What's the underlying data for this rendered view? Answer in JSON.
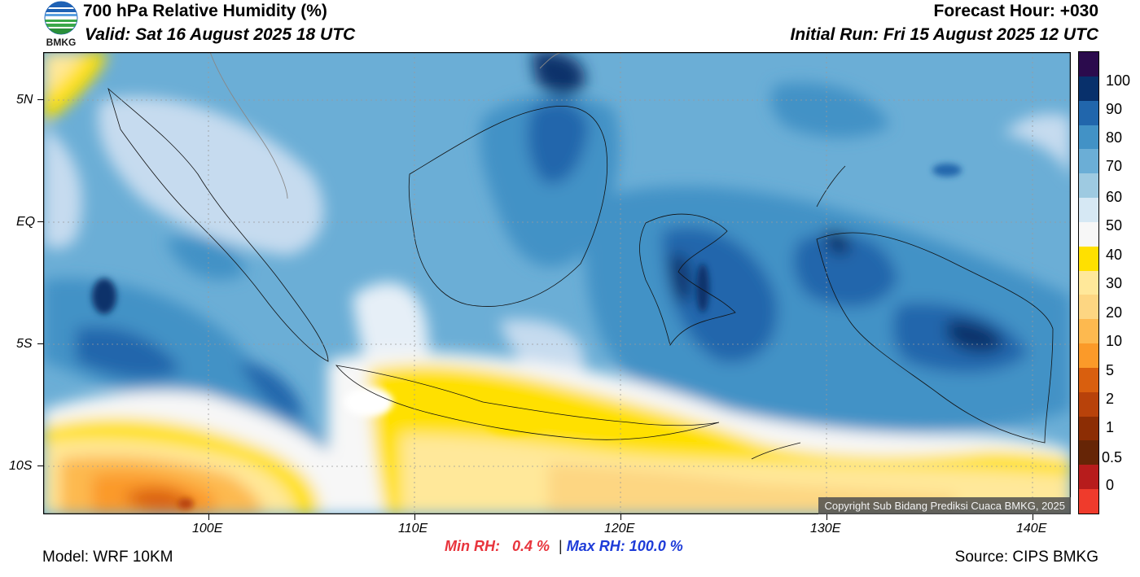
{
  "header": {
    "title": "700 hPa Relative Humidity (%)",
    "valid": "Valid: Sat 16 August 2025 18 UTC",
    "forecast_hour": "Forecast Hour: +030",
    "initial_run": "Initial Run: Fri 15 August 2025 12 UTC"
  },
  "logo": {
    "text": "BMKG",
    "icon": "bmkg-logo-icon"
  },
  "map": {
    "lat_labels": [
      "5N",
      "EQ",
      "5S",
      "10S"
    ],
    "lon_labels": [
      "100E",
      "110E",
      "120E",
      "130E",
      "140E"
    ],
    "copyright": "Copyright Sub Bidang Prediksi Cuaca BMKG, 2025"
  },
  "colorbar": {
    "labels": [
      "100",
      "90",
      "80",
      "70",
      "60",
      "50",
      "40",
      "30",
      "20",
      "10",
      "5",
      "2",
      "1",
      "0.5",
      "0"
    ],
    "colors": [
      "#2b0b4d",
      "#08306b",
      "#2166ac",
      "#4292c6",
      "#6baed6",
      "#9ecae1",
      "#d6e8f4",
      "#f7f7f7",
      "#ffe000",
      "#ffe89a",
      "#fdd682",
      "#fdb94f",
      "#fb9a29",
      "#d95f0e",
      "#b8420a",
      "#8c2d04",
      "#662506",
      "#b71c1c",
      "#ef3b2c"
    ]
  },
  "stats": {
    "min_label": "Min RH:",
    "min_value": "0.4 %",
    "separator": "|",
    "max_label": "Max RH: 100.0 %"
  },
  "footer": {
    "model": "Model: WRF 10KM",
    "source": "Source: CIPS BMKG"
  }
}
